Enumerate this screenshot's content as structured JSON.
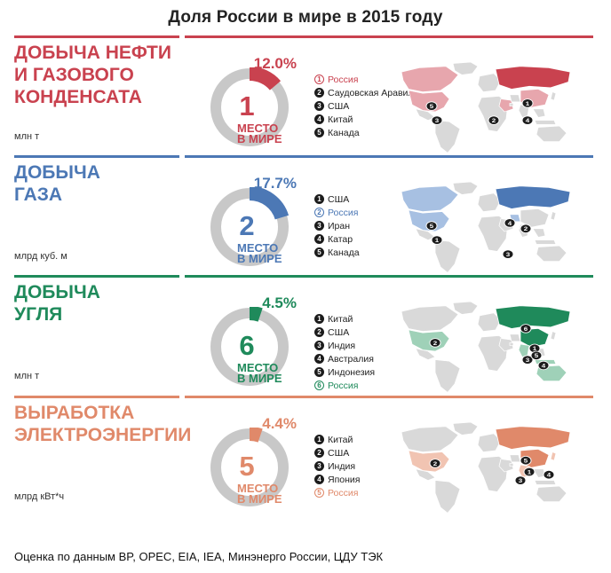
{
  "title": "Доля России в мире в 2015 году",
  "source_note": "Оценка по данным BP, OPEC, EIA, IEA, Минэнерго России, ЦДУ ТЭК",
  "place_label_1": "МЕСТО",
  "place_label_2": "В МИРЕ",
  "chart_data": [
    {
      "type": "pie",
      "title": "Добыча нефти и газового конденсата",
      "unit": "млн т",
      "russia_share_percent": 12.0,
      "share_label": "12.0%",
      "russia_rank": "1",
      "ranking": [
        "Россия",
        "Саудовская Аравия",
        "США",
        "Китай",
        "Канада"
      ],
      "color": "#c9424f"
    },
    {
      "type": "pie",
      "title": "Добыча газа",
      "unit": "млрд куб. м",
      "russia_share_percent": 17.7,
      "share_label": "17.7%",
      "russia_rank": "2",
      "ranking": [
        "США",
        "Россия",
        "Иран",
        "Катар",
        "Канада"
      ],
      "color": "#4c78b5"
    },
    {
      "type": "pie",
      "title": "Добыча угля",
      "unit": "млн т",
      "russia_share_percent": 4.5,
      "share_label": "4.5%",
      "russia_rank": "6",
      "ranking": [
        "Китай",
        "США",
        "Индия",
        "Австралия",
        "Индонезия",
        "Россия"
      ],
      "color": "#1f8a5b"
    },
    {
      "type": "pie",
      "title": "Выработка электроэнергии",
      "unit": "млрд кВт*ч",
      "russia_share_percent": 4.4,
      "share_label": "4.4%",
      "russia_rank": "5",
      "ranking": [
        "Китай",
        "США",
        "Индия",
        "Япония",
        "Россия"
      ],
      "color": "#e0896a"
    }
  ],
  "sections": [
    {
      "title_lines": [
        "Добыча нефти",
        "и газового",
        "конденсата"
      ],
      "legend": [
        {
          "n": "1",
          "label": "Россия",
          "russia": true
        },
        {
          "n": "2",
          "label": "Саудовская Аравия",
          "russia": false
        },
        {
          "n": "3",
          "label": "США",
          "russia": false
        },
        {
          "n": "4",
          "label": "Китай",
          "russia": false
        },
        {
          "n": "5",
          "label": "Канада",
          "russia": false
        }
      ],
      "map_markers": [
        "1",
        "2",
        "3",
        "4",
        "5"
      ]
    },
    {
      "title_lines": [
        "Добыча",
        "газа"
      ],
      "legend": [
        {
          "n": "1",
          "label": "США",
          "russia": false
        },
        {
          "n": "2",
          "label": "Россия",
          "russia": true
        },
        {
          "n": "3",
          "label": "Иран",
          "russia": false
        },
        {
          "n": "4",
          "label": "Катар",
          "russia": false
        },
        {
          "n": "5",
          "label": "Канада",
          "russia": false
        }
      ],
      "map_markers": [
        "1",
        "2",
        "3",
        "4",
        "5"
      ]
    },
    {
      "title_lines": [
        "Добыча",
        "угля"
      ],
      "legend": [
        {
          "n": "1",
          "label": "Китай",
          "russia": false
        },
        {
          "n": "2",
          "label": "США",
          "russia": false
        },
        {
          "n": "3",
          "label": "Индия",
          "russia": false
        },
        {
          "n": "4",
          "label": "Австралия",
          "russia": false
        },
        {
          "n": "5",
          "label": "Индонезия",
          "russia": false
        },
        {
          "n": "6",
          "label": "Россия",
          "russia": true
        }
      ],
      "map_markers": [
        "1",
        "2",
        "3",
        "4",
        "5",
        "6"
      ]
    },
    {
      "title_lines": [
        "Выработка",
        "электроэнергии"
      ],
      "legend": [
        {
          "n": "1",
          "label": "Китай",
          "russia": false
        },
        {
          "n": "2",
          "label": "США",
          "russia": false
        },
        {
          "n": "3",
          "label": "Индия",
          "russia": false
        },
        {
          "n": "4",
          "label": "Япония",
          "russia": false
        },
        {
          "n": "5",
          "label": "Россия",
          "russia": true
        }
      ],
      "map_markers": [
        "1",
        "2",
        "3",
        "4",
        "5"
      ]
    }
  ]
}
